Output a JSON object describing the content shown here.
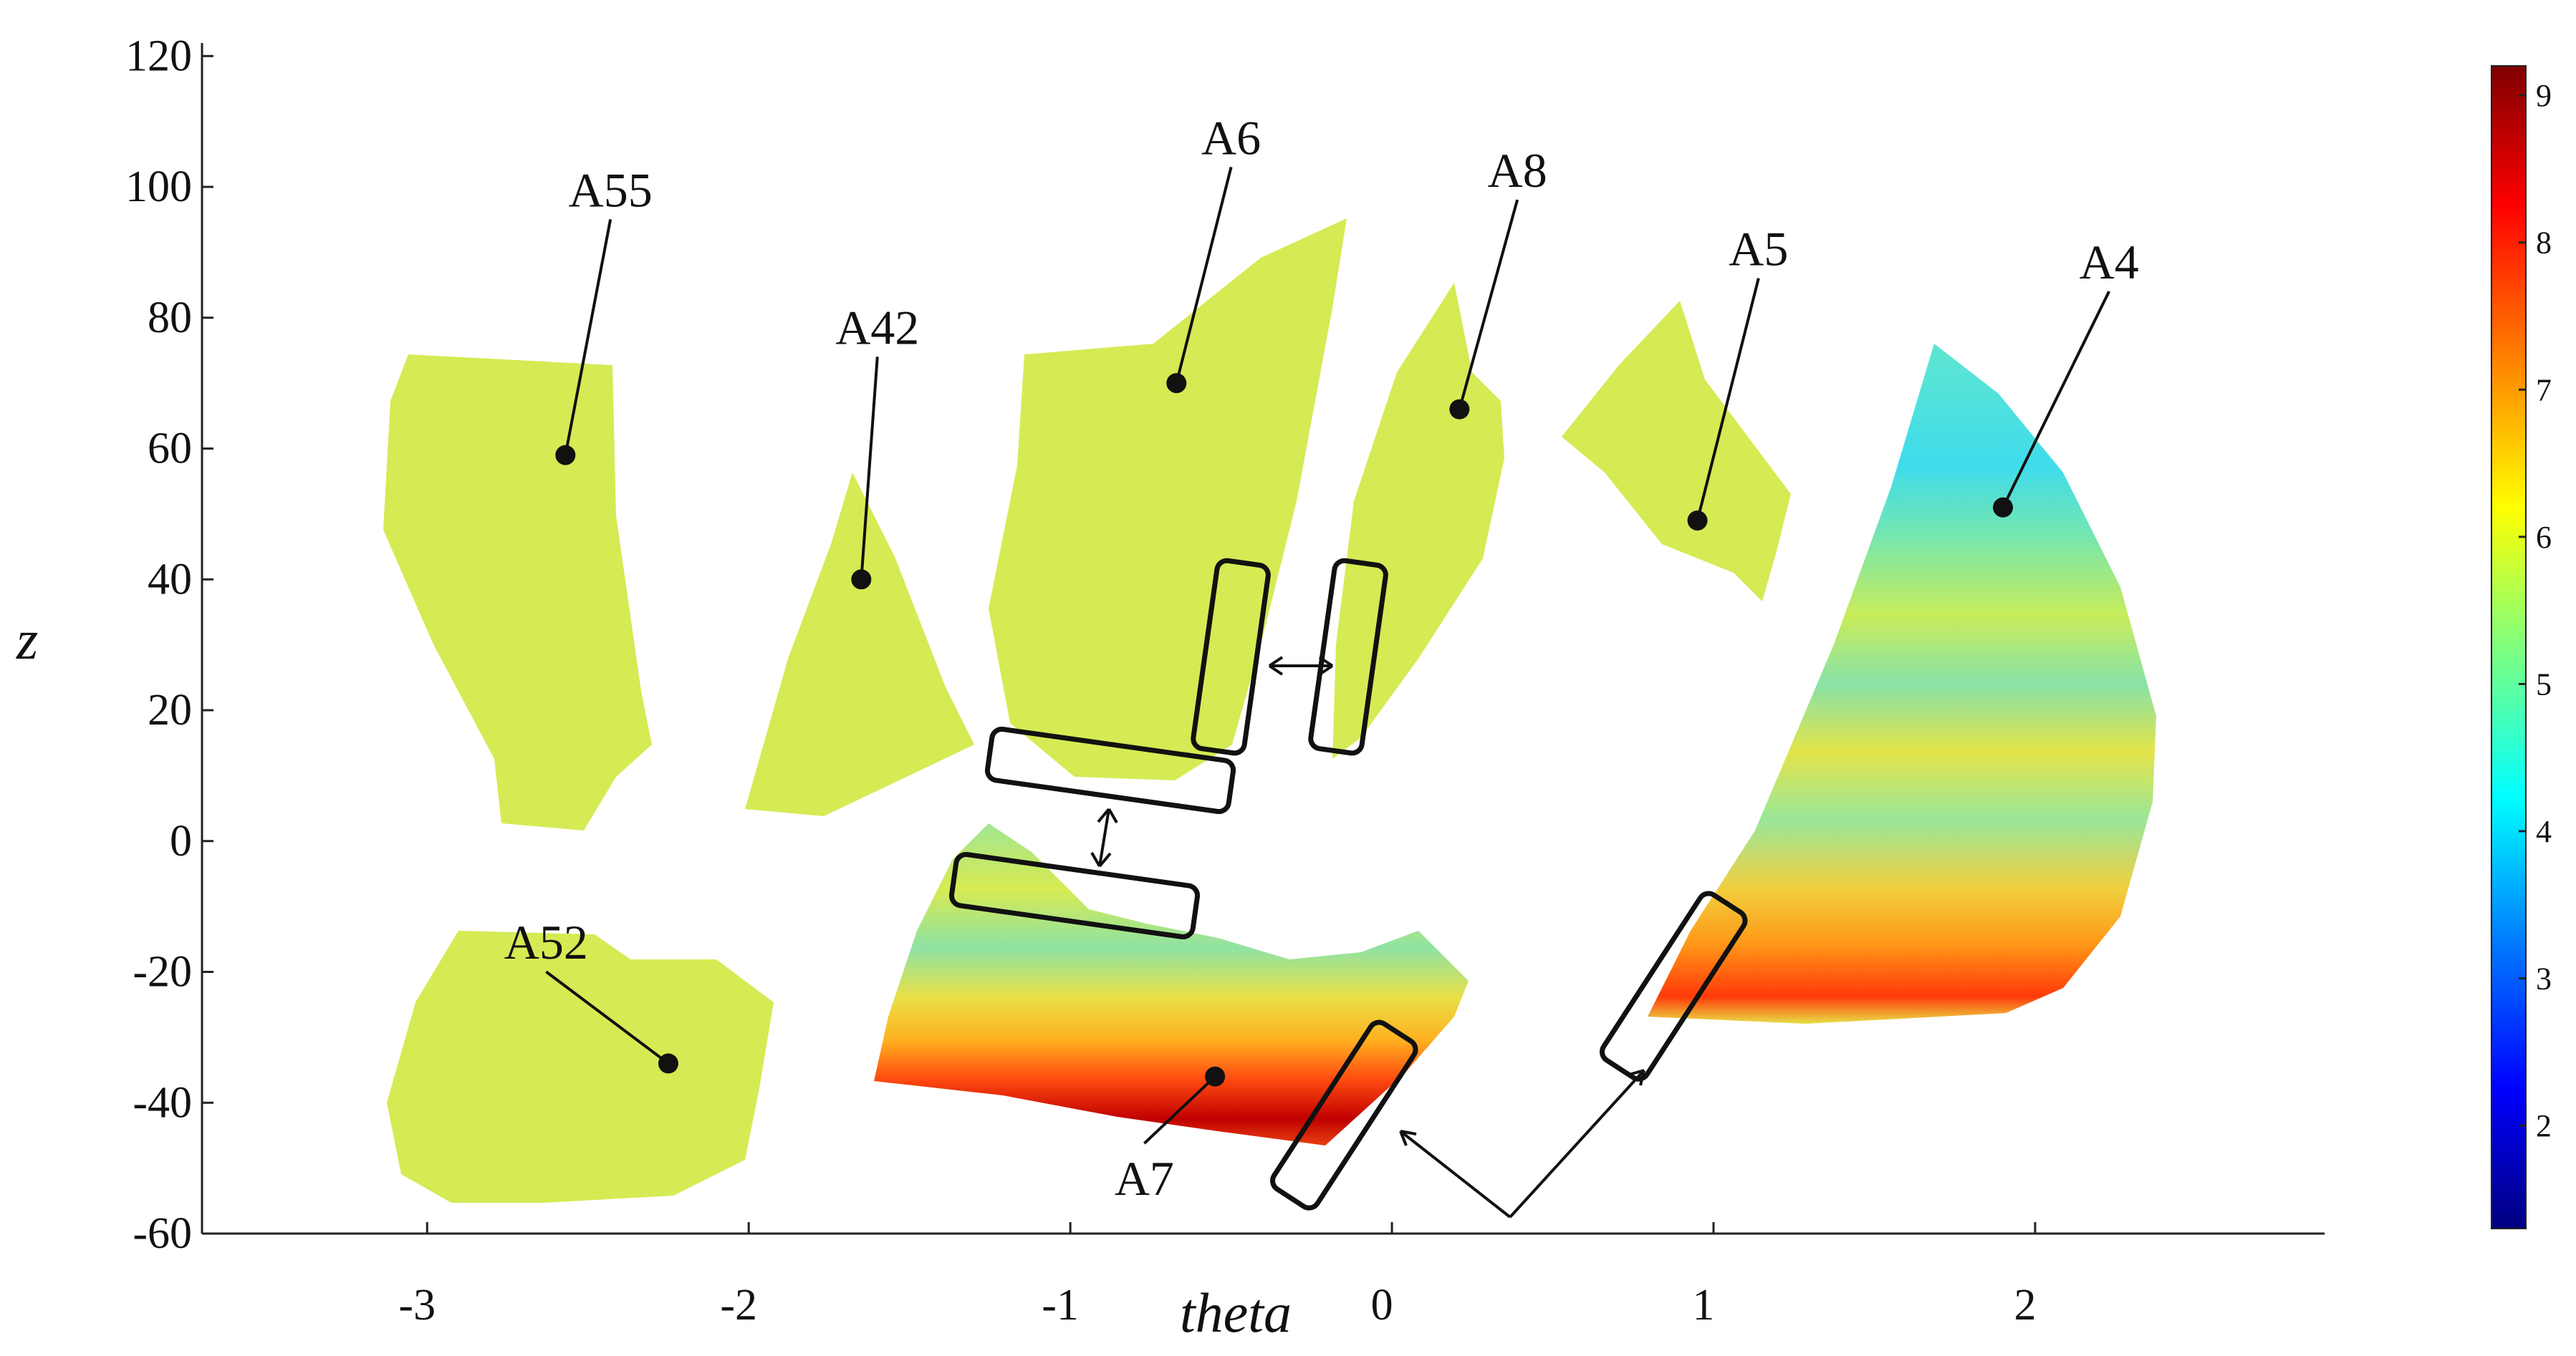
{
  "chart_data": {
    "type": "heatmap",
    "xlabel": "theta",
    "ylabel": "z",
    "xlim": [
      -3.7,
      2.9
    ],
    "ylim": [
      -60,
      122
    ],
    "x_ticks": [
      -3,
      -2,
      -1,
      0,
      1,
      2
    ],
    "y_ticks": [
      -60,
      -40,
      -20,
      0,
      20,
      40,
      60,
      80,
      100,
      120
    ],
    "colorbar": {
      "range": [
        1.3,
        9.2
      ],
      "ticks": [
        2,
        3,
        4,
        5,
        6,
        7,
        8,
        9
      ],
      "colormap": [
        "#00007f",
        "#0000ff",
        "#007fff",
        "#00ffff",
        "#7fff7f",
        "#ffff00",
        "#ff7f00",
        "#ff0000",
        "#7f0000"
      ]
    },
    "regions": [
      {
        "name": "A55",
        "point": [
          -2.57,
          59
        ],
        "label_at": [
          -2.43,
          97
        ]
      },
      {
        "name": "A42",
        "point": [
          -1.65,
          40
        ],
        "label_at": [
          -1.6,
          76
        ]
      },
      {
        "name": "A6",
        "point": [
          -0.67,
          70
        ],
        "label_at": [
          -0.5,
          105
        ]
      },
      {
        "name": "A8",
        "point": [
          0.21,
          66
        ],
        "label_at": [
          0.39,
          100
        ]
      },
      {
        "name": "A5",
        "point": [
          0.95,
          49
        ],
        "label_at": [
          1.14,
          88
        ]
      },
      {
        "name": "A4",
        "point": [
          1.9,
          51
        ],
        "label_at": [
          2.23,
          86
        ]
      },
      {
        "name": "A52",
        "point": [
          -2.25,
          -34
        ],
        "label_at": [
          -2.63,
          -18
        ]
      },
      {
        "name": "A7",
        "point": [
          -0.55,
          -36
        ],
        "label_at": [
          -0.77,
          -53
        ]
      }
    ],
    "overlap_box_count": 6
  }
}
